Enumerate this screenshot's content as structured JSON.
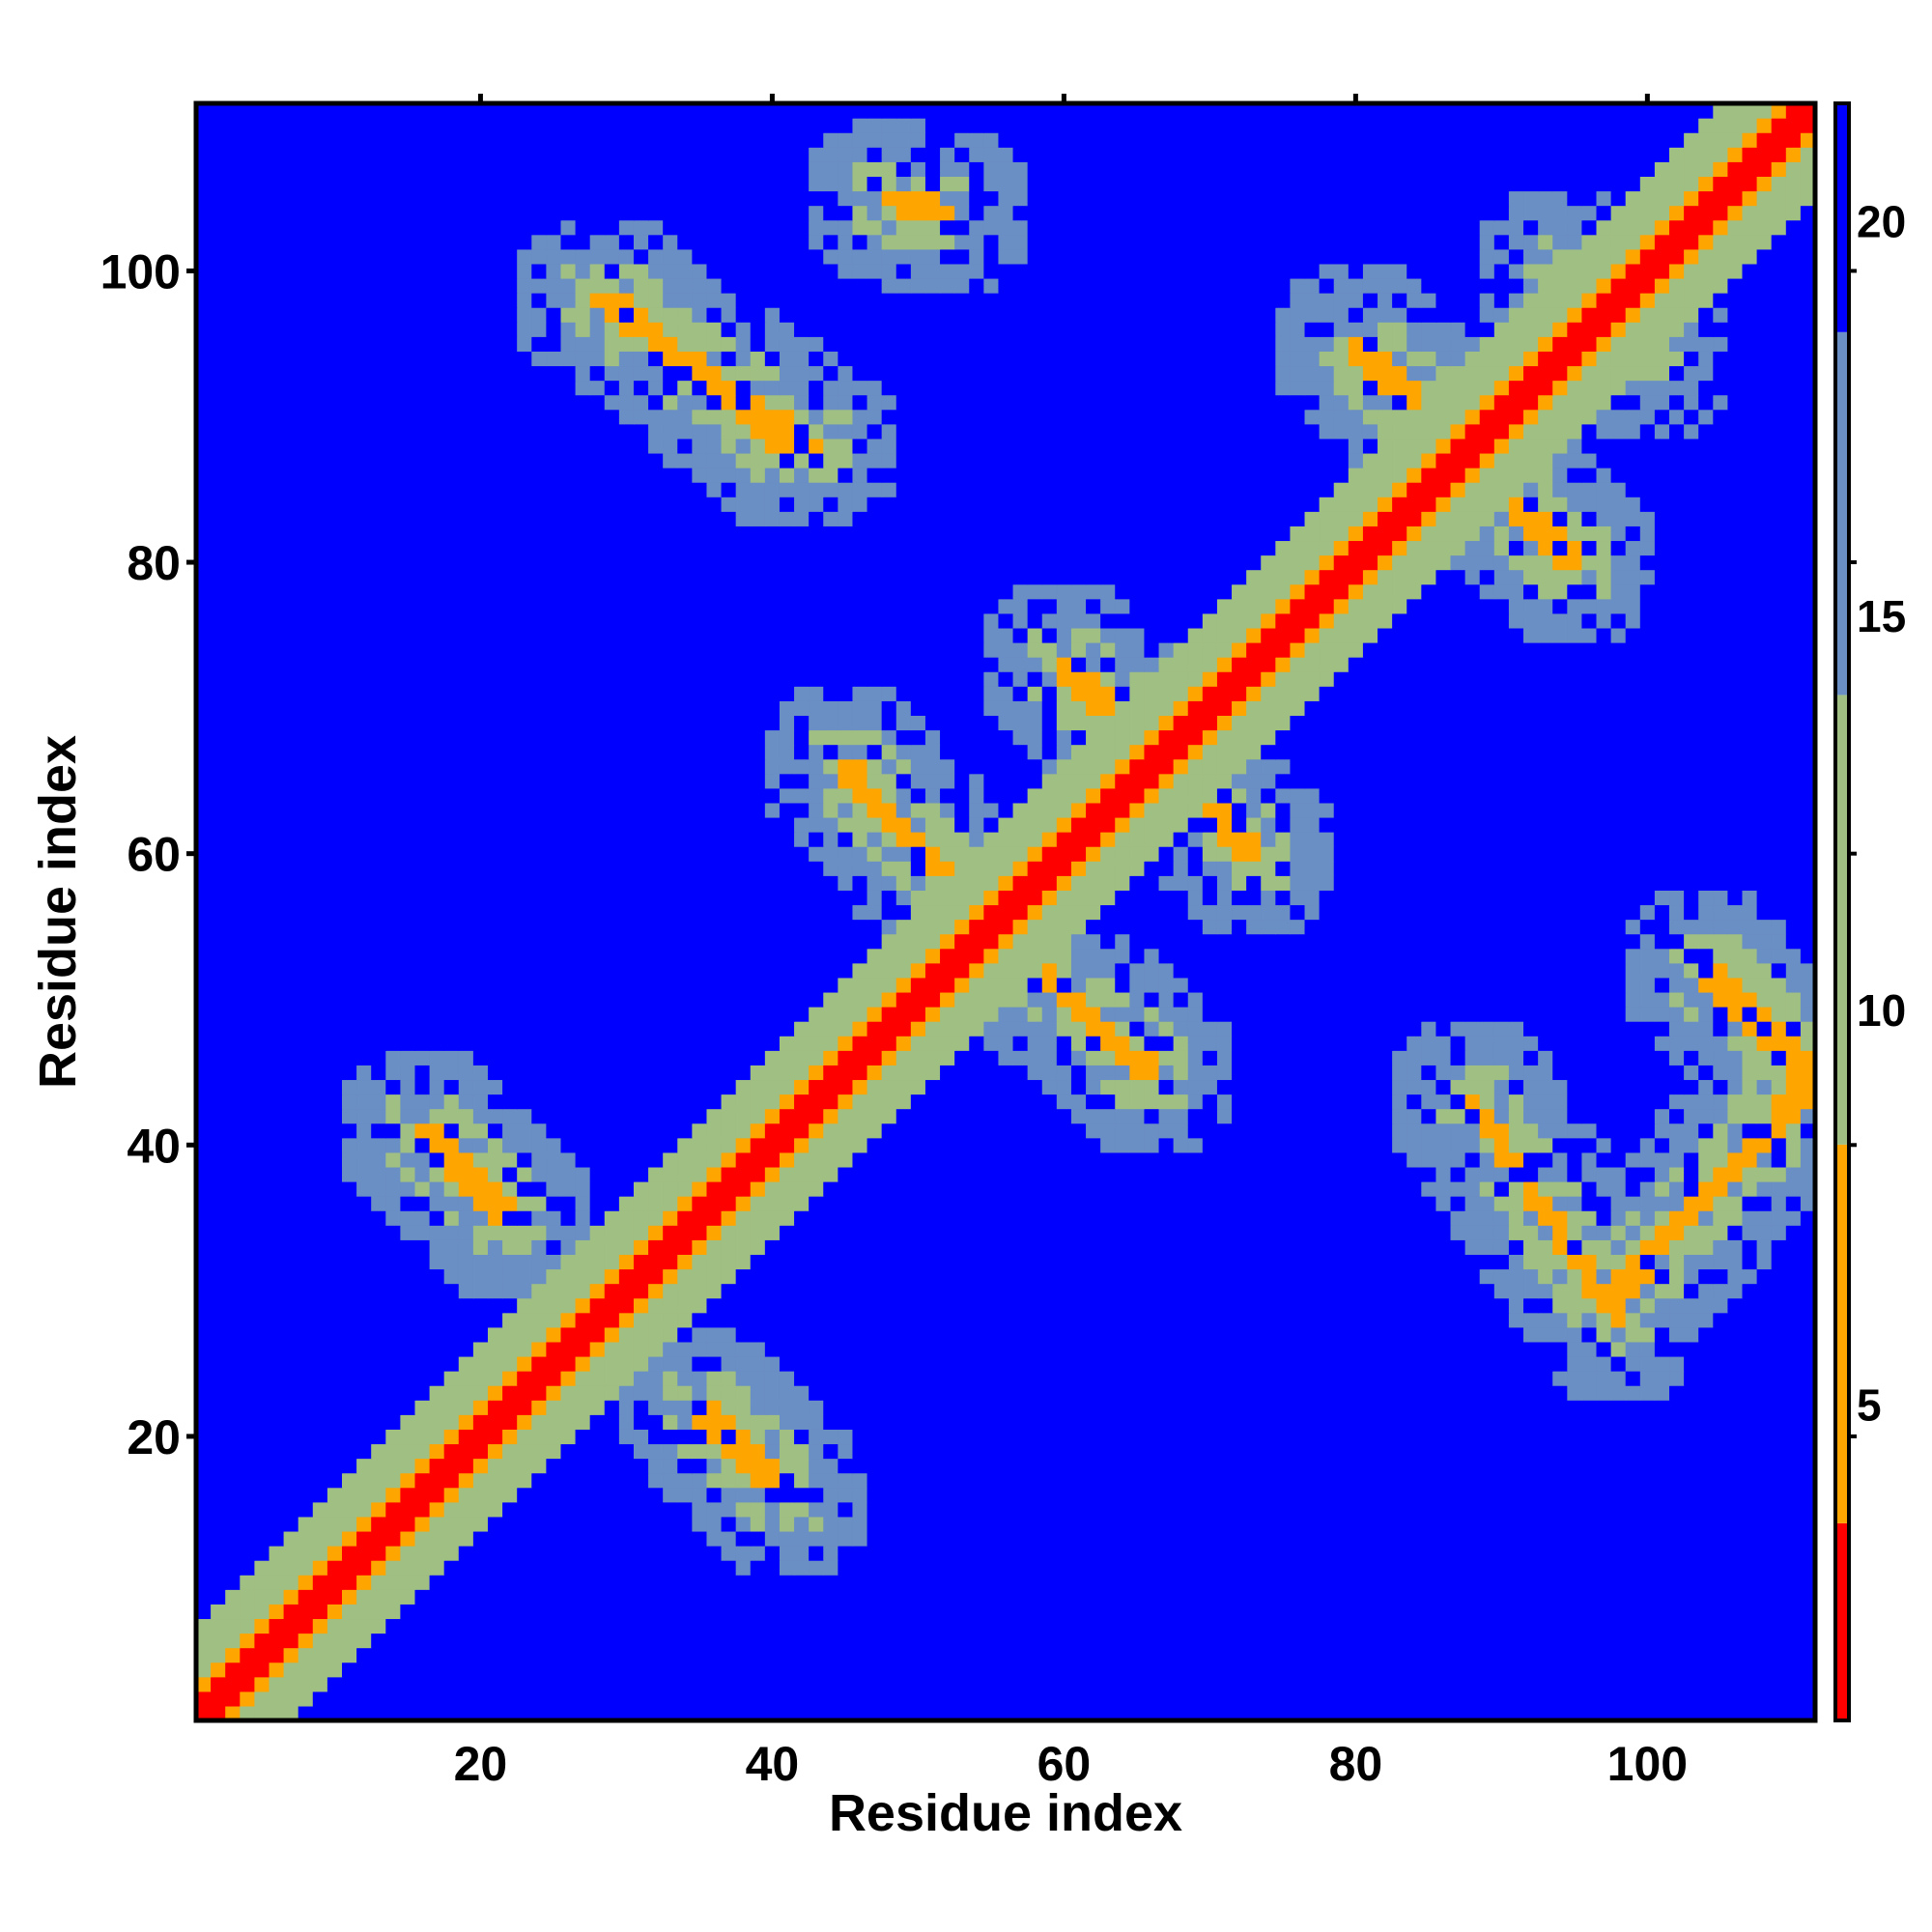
{
  "chart_data": {
    "type": "heatmap",
    "title": "",
    "xlabel": "Residue index",
    "ylabel": "Residue index",
    "n_residues": 111,
    "xlim": [
      1,
      111
    ],
    "ylim": [
      1,
      111
    ],
    "x_ticks": [
      20,
      40,
      60,
      80,
      100
    ],
    "y_ticks": [
      20,
      40,
      60,
      80,
      100
    ],
    "colorbar": {
      "range": [
        1,
        21.5
      ],
      "ticks": [
        5,
        10,
        15,
        20
      ],
      "bands": [
        {
          "from": 1,
          "to": 3.5,
          "color": "#ff0000"
        },
        {
          "from": 3.5,
          "to": 8.3,
          "color": "#ffa500"
        },
        {
          "from": 8.3,
          "to": 14,
          "color": "#a0bf82"
        },
        {
          "from": 14,
          "to": 18.6,
          "color": "#6a8fc4"
        },
        {
          "from": 18.6,
          "to": 21.5,
          "color": "#0000ff"
        }
      ]
    },
    "value_thresholds": {
      "diagonal_band": 1,
      "near_contact": 6,
      "medium": 12,
      "far": 16,
      "background": 21
    },
    "contact_segments": [
      {
        "from": [
          16,
          41
        ],
        "to": [
          22,
          35
        ],
        "kind": "antiparallel"
      },
      {
        "from": [
          35,
          22
        ],
        "to": [
          41,
          16
        ],
        "kind": "antiparallel"
      },
      {
        "from": [
          28,
          98
        ],
        "to": [
          43,
          88
        ],
        "kind": "antiparallel"
      },
      {
        "from": [
          88,
          43
        ],
        "to": [
          98,
          28
        ],
        "kind": "antiparallel"
      },
      {
        "from": [
          45,
          66
        ],
        "to": [
          55,
          55
        ],
        "kind": "antiparallel"
      },
      {
        "from": [
          55,
          55
        ],
        "to": [
          66,
          45
        ],
        "kind": "antiparallel"
      },
      {
        "from": [
          60,
          73
        ],
        "to": [
          67,
          66
        ],
        "kind": "antiparallel"
      },
      {
        "from": [
          66,
          67
        ],
        "to": [
          73,
          60
        ],
        "kind": "antiparallel"
      },
      {
        "from": [
          80,
          95
        ],
        "to": [
          89,
          86
        ],
        "kind": "antiparallel"
      },
      {
        "from": [
          86,
          89
        ],
        "to": [
          95,
          80
        ],
        "kind": "antiparallel"
      },
      {
        "from": [
          48,
          105
        ],
        "to": [
          52,
          104
        ],
        "kind": "antiparallel"
      },
      {
        "from": [
          29,
          98
        ],
        "to": [
          41,
          88
        ],
        "kind": "antiparallel"
      },
      {
        "from": [
          98,
          30
        ],
        "to": [
          111,
          44
        ],
        "kind": "parallel"
      },
      {
        "from": [
          104,
          52
        ],
        "to": [
          111,
          45
        ],
        "kind": "antiparallel"
      },
      {
        "from": [
          94,
          100
        ],
        "to": [
          100,
          94
        ],
        "kind": "parallel"
      }
    ],
    "grid": false,
    "legend": "colorbar-right"
  }
}
